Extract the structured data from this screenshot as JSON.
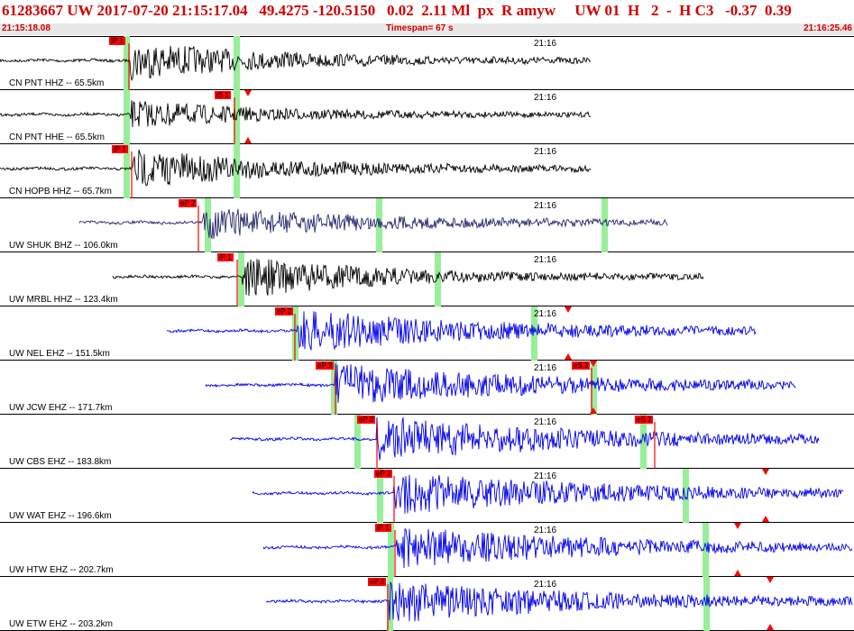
{
  "header": {
    "event_line": "61283667 UW 2017-07-20 21:15:17.04   49.4275 -120.5150   0.02  2.11 Ml  px  R amyw     UW 01  H   2  -  H C3   -0.37  0.39",
    "start_time": "21:15:18.08",
    "timespan": "Timespan=  67 s",
    "end_time": "21:16:25.46"
  },
  "colors": {
    "header_text": "#d00000",
    "pick": "#ff0000",
    "window": "#99ee99",
    "trace_black": "#000000",
    "trace_navy": "#26266e",
    "trace_blue": "#0000ee"
  },
  "traces": [
    {
      "label": "CN PNT HHZ -- 65.5km",
      "tick": "21:16",
      "color": "black",
      "start": 0,
      "end": 655,
      "onset": 145,
      "amp": 20,
      "coda": 0.25,
      "windows": [
        140,
        262
      ],
      "picks": [
        {
          "x": 143,
          "text": "iP 1"
        }
      ],
      "arrows": []
    },
    {
      "label": "CN PNT HHE -- 65.5km",
      "tick": "21:16",
      "color": "black",
      "start": 0,
      "end": 655,
      "onset": 145,
      "amp": 14,
      "coda": 0.2,
      "windows": [
        140,
        262
      ],
      "picks": [
        {
          "x": 260,
          "text": "iS 1"
        }
      ],
      "arrows": [
        {
          "x": 275,
          "dir": "down"
        },
        {
          "x": 275,
          "dir": "up"
        }
      ]
    },
    {
      "label": "CN HOPB HHZ -- 65.7km",
      "tick": "21:16",
      "color": "black",
      "start": 0,
      "end": 655,
      "onset": 148,
      "amp": 20,
      "coda": 0.3,
      "windows": [
        140,
        262
      ],
      "picks": [
        {
          "x": 146,
          "text": "iP 1"
        }
      ],
      "arrows": []
    },
    {
      "label": "UW SHUK BHZ -- 106.0km",
      "tick": "21:16",
      "color": "navy",
      "start": 88,
      "end": 740,
      "onset": 225,
      "amp": 16,
      "coda": 0.35,
      "windows": [
        230,
        420,
        670
      ],
      "picks": [
        {
          "x": 220,
          "text": "eP 2"
        }
      ],
      "arrows": []
    },
    {
      "label": "UW MRBL HHZ -- 123.4km",
      "tick": "21:16",
      "color": "black",
      "start": 125,
      "end": 780,
      "onset": 268,
      "amp": 22,
      "coda": 0.22,
      "windows": [
        267,
        485
      ],
      "picks": [
        {
          "x": 263,
          "text": "iP 1"
        }
      ],
      "arrows": []
    },
    {
      "label": "UW NEL EHZ -- 151.5km",
      "tick": "21:16",
      "color": "blue",
      "start": 185,
      "end": 838,
      "onset": 330,
      "amp": 22,
      "coda": 0.45,
      "windows": [
        327,
        592
      ],
      "picks": [
        {
          "x": 327,
          "text": "eP 2"
        }
      ],
      "arrows": [
        {
          "x": 630,
          "dir": "down"
        },
        {
          "x": 630,
          "dir": "up"
        }
      ]
    },
    {
      "label": "UW JCW EHZ -- 171.7km",
      "tick": "21:16",
      "color": "blue",
      "start": 228,
      "end": 882,
      "onset": 372,
      "amp": 22,
      "coda": 0.5,
      "windows": [
        370,
        658
      ],
      "picks": [
        {
          "x": 372,
          "text": "eP 2"
        },
        {
          "x": 656,
          "text": "eS 2"
        }
      ],
      "arrows": [
        {
          "x": 658,
          "dir": "down"
        },
        {
          "x": 658,
          "dir": "up"
        }
      ]
    },
    {
      "label": "UW CBS EHZ -- 183.8km",
      "tick": "21:16",
      "color": "blue",
      "start": 255,
      "end": 908,
      "onset": 418,
      "amp": 24,
      "coda": 0.5,
      "windows": [
        396,
        713
      ],
      "picks": [
        {
          "x": 418,
          "text": "eP 2"
        },
        {
          "x": 726,
          "text": "eS 2"
        }
      ],
      "arrows": []
    },
    {
      "label": "UW WAT EHZ -- 196.6km",
      "tick": "21:16",
      "color": "blue",
      "start": 280,
      "end": 935,
      "onset": 437,
      "amp": 22,
      "coda": 0.55,
      "windows": [
        421,
        760
      ],
      "picks": [
        {
          "x": 437,
          "text": "eP 2"
        }
      ],
      "arrows": [
        {
          "x": 849,
          "dir": "down"
        },
        {
          "x": 849,
          "dir": "up"
        }
      ]
    },
    {
      "label": "UW HTW EHZ -- 202.7km",
      "tick": "21:16",
      "color": "blue",
      "start": 292,
      "end": 945,
      "onset": 440,
      "amp": 22,
      "coda": 0.5,
      "windows": [
        433,
        782
      ],
      "picks": [
        {
          "x": 438,
          "text": "iP 1"
        }
      ],
      "arrows": [
        {
          "x": 818,
          "dir": "down"
        },
        {
          "x": 818,
          "dir": "up"
        }
      ]
    },
    {
      "label": "UW ETW EHZ -- 203.2km",
      "tick": "21:16",
      "color": "blue",
      "start": 295,
      "end": 945,
      "onset": 432,
      "amp": 22,
      "coda": 0.5,
      "windows": [
        432,
        783
      ],
      "picks": [
        {
          "x": 430,
          "text": "eP 2"
        }
      ],
      "arrows": [
        {
          "x": 854,
          "dir": "down"
        },
        {
          "x": 854,
          "dir": "up"
        }
      ]
    }
  ]
}
